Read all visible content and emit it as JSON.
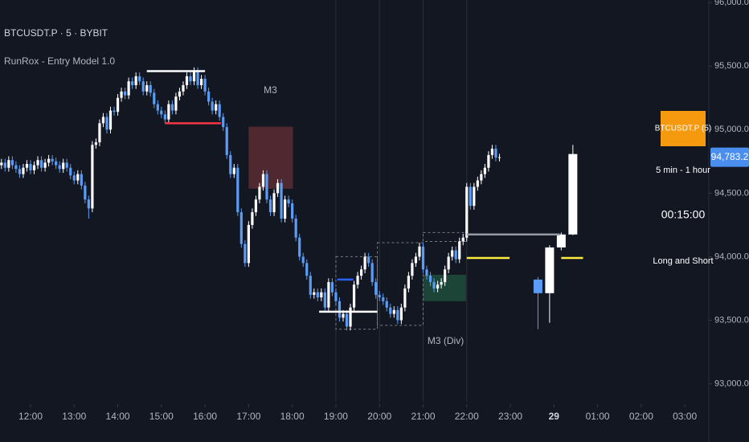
{
  "chart_data": {
    "type": "candlestick",
    "title": "BTCUSDT.P · 5 · BYBIT",
    "subtitle": "RunRox - Entry Model 1.0",
    "up_color": "#ffffff",
    "down_color": "#5b9cf6",
    "x": [
      680,
      685,
      690,
      695,
      700,
      705,
      710,
      715,
      720,
      725,
      730,
      735,
      740,
      745,
      750,
      755,
      760,
      765,
      770,
      775,
      780,
      785,
      790,
      795,
      800,
      805,
      810,
      815,
      820,
      825,
      830,
      835,
      840,
      845,
      850,
      855,
      860,
      865,
      870,
      875,
      880,
      885,
      890,
      895,
      900,
      905,
      910,
      915,
      920,
      925,
      930,
      935,
      940,
      945,
      950,
      955,
      960,
      965,
      970,
      975,
      980,
      985,
      990,
      995,
      1000,
      1005,
      1010,
      1015,
      1020,
      1025,
      1030,
      1035,
      1040,
      1045,
      1050,
      1055,
      1060,
      1065,
      1070,
      1075,
      1080,
      1085,
      1090,
      1095,
      1100,
      1105,
      1110,
      1115,
      1120,
      1125,
      1130,
      1135,
      1140,
      1145,
      1150,
      1155,
      1160,
      1165,
      1170,
      1175,
      1180,
      1185,
      1190,
      1195,
      1200,
      1205,
      1210,
      1215,
      1220,
      1225,
      1230,
      1235,
      1240,
      1245,
      1250,
      1255,
      1260,
      1265,
      1270,
      1275,
      1280,
      1285,
      1290,
      1295,
      1300,
      1305,
      1310,
      1315,
      1320,
      1325,
      1330,
      1335,
      1340,
      1345,
      1350,
      1355,
      1360,
      1365
    ],
    "open": [
      94720,
      94740,
      94700,
      94760,
      94720,
      94690,
      94650,
      94700,
      94730,
      94680,
      94720,
      94760,
      94700,
      94740,
      94770,
      94750,
      94720,
      94690,
      94740,
      94700,
      94640,
      94600,
      94650,
      94560,
      94450,
      94380,
      94880,
      94900,
      95050,
      95100,
      95000,
      95150,
      95140,
      95250,
      95300,
      95270,
      95380,
      95350,
      95420,
      95380,
      95300,
      95350,
      95290,
      95200,
      95150,
      95120,
      95080,
      95200,
      95150,
      95260,
      95300,
      95350,
      95420,
      95380,
      95460,
      95350,
      95400,
      95300,
      95220,
      95150,
      95200,
      95100,
      95020,
      94800,
      94650,
      94700,
      94350,
      94100,
      93950,
      94250,
      94350,
      94450,
      94550,
      94650,
      94450,
      94350,
      94500,
      94580,
      94300,
      94450,
      94420,
      94300,
      94150,
      94000,
      93950,
      93850,
      93700,
      93720,
      93680,
      93720,
      93600,
      93800,
      93720,
      93650,
      93520,
      93550,
      93450,
      93600,
      93780,
      93850,
      93900,
      94000,
      93950,
      93800,
      93700,
      93680,
      93650,
      93600,
      93550,
      93580,
      93500,
      93600,
      93750,
      93850,
      93950,
      94000,
      94080,
      93900,
      93850,
      93800,
      93750,
      93780,
      93800,
      93900,
      94000,
      94050,
      93980,
      94120,
      94150,
      94550,
      94400,
      94550,
      94600,
      94650,
      94700,
      94800,
      94850,
      94780
    ],
    "high": [
      94770,
      94770,
      94790,
      94790,
      94750,
      94720,
      94730,
      94760,
      94760,
      94750,
      94790,
      94790,
      94770,
      94800,
      94800,
      94780,
      94750,
      94770,
      94770,
      94730,
      94670,
      94680,
      94680,
      94590,
      94480,
      94910,
      94930,
      95080,
      95130,
      95130,
      95180,
      95180,
      95280,
      95330,
      95330,
      95410,
      95410,
      95450,
      95450,
      95410,
      95380,
      95380,
      95320,
      95230,
      95180,
      95150,
      95230,
      95230,
      95290,
      95330,
      95380,
      95450,
      95450,
      95490,
      95490,
      95430,
      95430,
      95330,
      95250,
      95230,
      95230,
      95130,
      95050,
      94830,
      94730,
      94730,
      94380,
      94130,
      94280,
      94380,
      94480,
      94580,
      94680,
      94680,
      94480,
      94530,
      94610,
      94610,
      94480,
      94480,
      94450,
      94330,
      94180,
      94030,
      93980,
      93880,
      93750,
      93750,
      93750,
      93750,
      93830,
      93830,
      93750,
      93680,
      93580,
      93580,
      93630,
      93810,
      93880,
      93930,
      94030,
      94030,
      93980,
      93830,
      93730,
      93710,
      93680,
      93630,
      93610,
      93610,
      93630,
      93780,
      93880,
      93980,
      94030,
      94110,
      94110,
      93930,
      93880,
      93830,
      93810,
      93830,
      93930,
      94030,
      94080,
      94080,
      94150,
      94180,
      94580,
      94580,
      94580,
      94630,
      94680,
      94730,
      94830,
      94880,
      94880,
      94810
    ],
    "low": [
      94690,
      94670,
      94670,
      94690,
      94660,
      94620,
      94620,
      94670,
      94650,
      94650,
      94690,
      94670,
      94670,
      94710,
      94720,
      94690,
      94660,
      94660,
      94670,
      94610,
      94570,
      94570,
      94530,
      94420,
      94300,
      94350,
      94850,
      94870,
      95020,
      94970,
      94970,
      95110,
      95110,
      95220,
      95240,
      95240,
      95320,
      95320,
      95350,
      95270,
      95270,
      95260,
      95170,
      95120,
      95090,
      95050,
      95050,
      95120,
      95120,
      95230,
      95270,
      95320,
      95350,
      95350,
      95320,
      95320,
      95270,
      95190,
      95120,
      95120,
      95070,
      94990,
      94770,
      94620,
      94620,
      94320,
      94070,
      93920,
      93920,
      94220,
      94320,
      94420,
      94520,
      94420,
      94320,
      94320,
      94470,
      94270,
      94270,
      94390,
      94270,
      94120,
      93970,
      93920,
      93820,
      93670,
      93670,
      93650,
      93650,
      93570,
      93570,
      93690,
      93620,
      93490,
      93490,
      93420,
      93420,
      93570,
      93750,
      93820,
      93870,
      93920,
      93770,
      93670,
      93650,
      93620,
      93570,
      93520,
      93520,
      93470,
      93470,
      93570,
      93720,
      93820,
      93920,
      93970,
      93870,
      93820,
      93770,
      93720,
      93720,
      93750,
      93770,
      93870,
      93970,
      93950,
      93950,
      94090,
      94120,
      94370,
      94370,
      94520,
      94570,
      94620,
      94670,
      94770,
      94750,
      94750
    ],
    "close": [
      94740,
      94700,
      94760,
      94720,
      94690,
      94650,
      94700,
      94730,
      94680,
      94720,
      94760,
      94700,
      94740,
      94770,
      94750,
      94720,
      94690,
      94740,
      94700,
      94640,
      94600,
      94650,
      94560,
      94450,
      94380,
      94880,
      94900,
      95050,
      95100,
      95000,
      95150,
      95140,
      95250,
      95300,
      95270,
      95380,
      95350,
      95420,
      95380,
      95300,
      95350,
      95290,
      95200,
      95150,
      95120,
      95080,
      95200,
      95150,
      95260,
      95300,
      95350,
      95420,
      95380,
      95460,
      95350,
      95400,
      95300,
      95220,
      95150,
      95200,
      95100,
      95020,
      94800,
      94650,
      94700,
      94350,
      94100,
      93950,
      94250,
      94350,
      94450,
      94550,
      94650,
      94450,
      94350,
      94500,
      94580,
      94300,
      94450,
      94420,
      94300,
      94150,
      94000,
      93950,
      93850,
      93700,
      93720,
      93680,
      93720,
      93600,
      93800,
      93720,
      93650,
      93520,
      93550,
      93450,
      93600,
      93780,
      93850,
      93900,
      94000,
      93950,
      93800,
      93700,
      93680,
      93650,
      93600,
      93550,
      93580,
      93500,
      93600,
      93750,
      93850,
      93950,
      94000,
      94080,
      93900,
      93850,
      93800,
      93750,
      93780,
      93800,
      93900,
      94000,
      94050,
      93980,
      94120,
      94150,
      94550,
      94400,
      94550,
      94600,
      94650,
      94700,
      94800,
      94850,
      94780,
      94783.2
    ],
    "projection": {
      "x": [
        1418,
        1434,
        1450,
        1466
      ],
      "open": [
        93820,
        93713,
        94073,
        94175
      ],
      "high": [
        93840,
        94090,
        94190,
        94880
      ],
      "low": [
        93430,
        93480,
        94050,
        94170
      ],
      "close": [
        93713,
        94073,
        94175,
        94808
      ]
    },
    "xlim": [
      678,
      1653
    ],
    "ylim": [
      92700,
      96020
    ],
    "xticks": [
      {
        "value": 720,
        "label": "12:00"
      },
      {
        "value": 780,
        "label": "13:00"
      },
      {
        "value": 840,
        "label": "14:00"
      },
      {
        "value": 900,
        "label": "15:00"
      },
      {
        "value": 960,
        "label": "16:00"
      },
      {
        "value": 1020,
        "label": "17:00"
      },
      {
        "value": 1080,
        "label": "18:00"
      },
      {
        "value": 1140,
        "label": "19:00"
      },
      {
        "value": 1200,
        "label": "20:00"
      },
      {
        "value": 1260,
        "label": "21:00"
      },
      {
        "value": 1320,
        "label": "22:00"
      },
      {
        "value": 1380,
        "label": "23:00"
      },
      {
        "value": 1440,
        "label": "29"
      },
      {
        "value": 1500,
        "label": "01:00"
      },
      {
        "value": 1560,
        "label": "02:00"
      },
      {
        "value": 1620,
        "label": "03:00"
      }
    ],
    "yticks": [
      {
        "value": 93000,
        "label": "93,000.0"
      },
      {
        "value": 93500,
        "label": "93,500.0"
      },
      {
        "value": 94000,
        "label": "94,000.0"
      },
      {
        "value": 94500,
        "label": "94,500.0"
      },
      {
        "value": 95000,
        "label": "95,000.0"
      },
      {
        "value": 95500,
        "label": "95,500.0"
      },
      {
        "value": 96000,
        "label": "96,000.0"
      }
    ],
    "last_price": {
      "value": 94783.2,
      "label": "94,783.2",
      "color": "#4a8ef0"
    },
    "levels": [
      {
        "x": [
          880,
          960
        ],
        "y": 95460,
        "color": "#ffffff"
      },
      {
        "x": [
          905,
          982
        ],
        "y": 95050,
        "color": "#f23645"
      },
      {
        "x": [
          1142,
          1164
        ],
        "y": 93820,
        "color": "#2962ff"
      },
      {
        "x": [
          1117,
          1197
        ],
        "y": 93567,
        "color": "#ffffff"
      },
      {
        "x": [
          1320,
          1448
        ],
        "y": 94175,
        "color": "#9598a1"
      },
      {
        "x": [
          1320,
          1379
        ],
        "y": 93990,
        "color": "#ffeb3b"
      },
      {
        "x": [
          1450,
          1480
        ],
        "y": 93990,
        "color": "#ffeb3b"
      }
    ],
    "boxes": [
      {
        "x": [
          1020,
          1081
        ],
        "y": [
          94535,
          95023
        ],
        "color": "#5c2b31"
      },
      {
        "x": [
          1260,
          1319
        ],
        "y": [
          93650,
          93858
        ],
        "color": "#1e4d3b"
      }
    ],
    "zones": [
      {
        "x": [
          1140,
          1197
        ],
        "y": [
          93430,
          94000
        ],
        "color": "#787b86"
      },
      {
        "x": [
          1197,
          1260
        ],
        "y": [
          93460,
          94110
        ],
        "color": "#787b86"
      },
      {
        "x": [
          1260,
          1320
        ],
        "y": [
          94120,
          94190
        ],
        "color": "#787b86"
      }
    ],
    "vlines": [
      1140,
      1200,
      1260,
      1320
    ],
    "annotations": [
      {
        "text": "M3",
        "x": 1050,
        "y": 95308
      },
      {
        "text": "M3 (Div)",
        "x": 1291,
        "y": 93333
      }
    ],
    "panel": {
      "symbol": "BTCUSDT.P (5)",
      "timeframe": "5 min - 1 hour",
      "timer": "00:15:00",
      "mode": "Long and Short",
      "color": "#f59a0e"
    }
  }
}
